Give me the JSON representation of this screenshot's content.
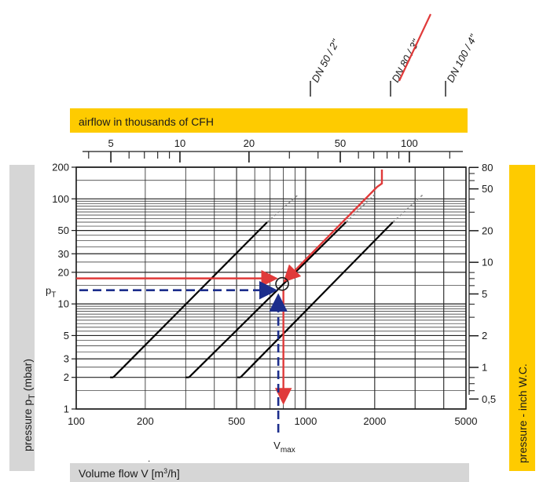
{
  "chart_data": {
    "type": "line",
    "title": "",
    "xlabel": "Volume flow V [m³/h]",
    "xlabel_parts": {
      "main": "Volume flow ",
      "symbol": "V",
      "dot": "˙",
      "unit_open": " [m",
      "unit_sup": "3",
      "unit_close": "/h]"
    },
    "ylabel": "pressure pT (mbar)",
    "ylabel_parts": {
      "pre": "pressure p",
      "sub": "T",
      "post": " (mbar)"
    },
    "y2label": "pressure  - inch W.C.",
    "x2label": "airflow in thousands of CFH",
    "x_scale": "log",
    "y_scale": "log",
    "xlim": [
      100,
      5000
    ],
    "ylim": [
      1,
      200
    ],
    "x_ticks": [
      {
        "value": 100,
        "label": "100"
      },
      {
        "value": 200,
        "label": "200"
      },
      {
        "value": 500,
        "label": "500"
      },
      {
        "value": 1000,
        "label": "1000"
      },
      {
        "value": 2000,
        "label": "2000"
      },
      {
        "value": 5000,
        "label": "5000"
      }
    ],
    "y_ticks": [
      {
        "value": 1,
        "label": "1"
      },
      {
        "value": 2,
        "label": "2"
      },
      {
        "value": 3,
        "label": "3"
      },
      {
        "value": 5,
        "label": "5"
      },
      {
        "value": 10,
        "label": "10"
      },
      {
        "value": 20,
        "label": "20"
      },
      {
        "value": 30,
        "label": "30"
      },
      {
        "value": 50,
        "label": "50"
      },
      {
        "value": 100,
        "label": "100"
      },
      {
        "value": 200,
        "label": "200"
      }
    ],
    "x2_ticks": [
      {
        "label": "5",
        "cfh_thousands": 5
      },
      {
        "label": "10",
        "cfh_thousands": 10
      },
      {
        "label": "20",
        "cfh_thousands": 20
      },
      {
        "label": "50",
        "cfh_thousands": 50
      },
      {
        "label": "100",
        "cfh_thousands": 100
      }
    ],
    "y2_ticks": [
      {
        "label": "80",
        "inch_wc": 80
      },
      {
        "label": "50",
        "inch_wc": 50
      },
      {
        "label": "20",
        "inch_wc": 20
      },
      {
        "label": "10",
        "inch_wc": 10
      },
      {
        "label": "5",
        "inch_wc": 5
      },
      {
        "label": "2",
        "inch_wc": 2
      },
      {
        "label": "1",
        "inch_wc": 1
      },
      {
        "label": "0,5",
        "inch_wc": 0.5
      }
    ],
    "grid": true,
    "series": [
      {
        "name": "DN 50 / 2\"",
        "color": "#000000",
        "points": [
          [
            145,
            2
          ],
          [
            680,
            60
          ]
        ],
        "dashed_extension": [
          [
            680,
            60
          ],
          [
            930,
            110
          ]
        ]
      },
      {
        "name": "DN 80 / 3\"",
        "color": "#000000",
        "highlight": "#e03a3a",
        "points": [
          [
            310,
            2
          ],
          [
            1500,
            60
          ]
        ],
        "dashed_extension": [
          [
            1500,
            60
          ],
          [
            2000,
            110
          ]
        ]
      },
      {
        "name": "DN 100 / 4\"",
        "color": "#000000",
        "points": [
          [
            520,
            2
          ],
          [
            2400,
            60
          ]
        ],
        "dashed_extension": [
          [
            2400,
            60
          ],
          [
            3250,
            110
          ]
        ]
      }
    ],
    "annotations": {
      "pT_label": {
        "pre": "p",
        "sub": "T"
      },
      "vmax_label": {
        "pre": "V",
        "sub": "max"
      },
      "pT_value": 13.5,
      "vmax_value": 760,
      "operating_point": [
        790,
        15.5
      ],
      "red_path": [
        [
          2150,
          190
        ],
        [
          2150,
          140
        ],
        [
          2050,
          130
        ],
        [
          820,
          17
        ]
      ],
      "red_horizontal_y": 17.5,
      "red_vertical_x": 800
    },
    "colors": {
      "band": "#fecb00",
      "axis_box": "#d6d6d6",
      "red": "#e03a3a",
      "blue": "#1c2e8c",
      "grid": "#222222"
    }
  }
}
